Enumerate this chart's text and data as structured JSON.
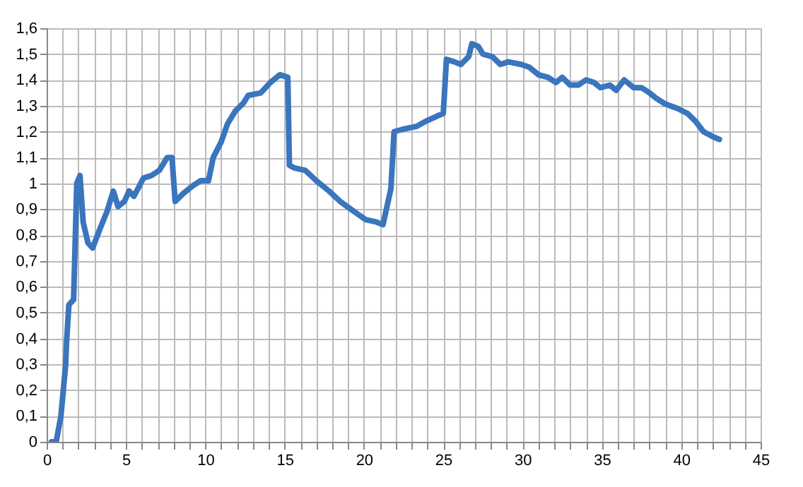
{
  "chart_data": {
    "type": "line",
    "color": "#3a75bd",
    "grid": true,
    "marker": "none",
    "line_style": "solid",
    "xlim": [
      0,
      45
    ],
    "xticks": [
      0,
      {
        "value": 1,
        "label": null
      },
      {
        "value": 2,
        "label": null
      },
      {
        "value": 3,
        "label": null
      },
      {
        "value": 4,
        "label": null
      },
      5,
      {
        "value": 6,
        "label": null
      },
      {
        "value": 7,
        "label": null
      },
      {
        "value": 8,
        "label": null
      },
      {
        "value": 9,
        "label": null
      },
      10,
      {
        "value": 11,
        "label": null
      },
      {
        "value": 12,
        "label": null
      },
      {
        "value": 13,
        "label": null
      },
      {
        "value": 14,
        "label": null
      },
      15,
      {
        "value": 16,
        "label": null
      },
      {
        "value": 17,
        "label": null
      },
      {
        "value": 18,
        "label": null
      },
      {
        "value": 19,
        "label": null
      },
      20,
      {
        "value": 21,
        "label": null
      },
      {
        "value": 22,
        "label": null
      },
      {
        "value": 23,
        "label": null
      },
      {
        "value": 24,
        "label": null
      },
      25,
      {
        "value": 26,
        "label": null
      },
      {
        "value": 27,
        "label": null
      },
      {
        "value": 28,
        "label": null
      },
      {
        "value": 29,
        "label": null
      },
      30,
      {
        "value": 31,
        "label": null
      },
      {
        "value": 32,
        "label": null
      },
      {
        "value": 33,
        "label": null
      },
      {
        "value": 34,
        "label": null
      },
      35,
      {
        "value": 36,
        "label": null
      },
      {
        "value": 37,
        "label": null
      },
      {
        "value": 38,
        "label": null
      },
      {
        "value": 39,
        "label": null
      },
      40,
      {
        "value": 41,
        "label": null
      },
      {
        "value": 42,
        "label": null
      },
      {
        "value": 43,
        "label": null
      },
      {
        "value": 44,
        "label": null
      },
      45
    ],
    "ylim": [
      0,
      1.6
    ],
    "yticks": [
      0,
      {
        "value": 0.1,
        "label": "0,1"
      },
      {
        "value": 0.2,
        "label": "0,2"
      },
      {
        "value": 0.3,
        "label": "0,3"
      },
      {
        "value": 0.4,
        "label": "0,4"
      },
      {
        "value": 0.5,
        "label": "0,5"
      },
      {
        "value": 0.6,
        "label": "0,6"
      },
      {
        "value": 0.7,
        "label": "0,7"
      },
      {
        "value": 0.8,
        "label": "0,8"
      },
      {
        "value": 0.9,
        "label": "0,9"
      },
      1,
      {
        "value": 1.1,
        "label": "1,1"
      },
      {
        "value": 1.2,
        "label": "1,2"
      },
      {
        "value": 1.3,
        "label": "1,3"
      },
      {
        "value": 1.4,
        "label": "1,4"
      },
      {
        "value": 1.5,
        "label": "1,5"
      },
      {
        "value": 1.6,
        "label": "1,6"
      }
    ],
    "x": [
      0.3,
      0.6,
      0.9,
      1.2,
      1.25,
      1.4,
      1.7,
      1.9,
      2.1,
      2.3,
      2.6,
      2.9,
      3.4,
      3.8,
      4.2,
      4.5,
      4.9,
      5.2,
      5.5,
      6.1,
      6.6,
      7.1,
      7.6,
      7.9,
      8.1,
      8.6,
      9.2,
      9.7,
      10.2,
      10.5,
      11.0,
      11.4,
      11.9,
      12.4,
      12.7,
      13.5,
      14.1,
      14.7,
      15.2,
      15.3,
      15.6,
      16.3,
      17.0,
      17.8,
      18.5,
      19.4,
      20.1,
      20.8,
      21.2,
      21.7,
      21.9,
      22.5,
      23.3,
      23.9,
      24.6,
      25.0,
      25.2,
      25.7,
      26.1,
      26.6,
      26.8,
      27.2,
      27.5,
      28.1,
      28.6,
      29.1,
      29.9,
      30.4,
      31.0,
      31.6,
      32.1,
      32.5,
      33.0,
      33.5,
      34.0,
      34.5,
      34.9,
      35.5,
      35.9,
      36.4,
      37.0,
      37.5,
      38.0,
      38.4,
      38.9,
      39.3,
      39.75,
      40.4,
      40.9,
      41.4,
      42.0,
      42.4
    ],
    "values": [
      0,
      0,
      0.1,
      0.3,
      0.38,
      0.53,
      0.55,
      1.0,
      1.03,
      0.85,
      0.77,
      0.75,
      0.83,
      0.89,
      0.97,
      0.91,
      0.93,
      0.97,
      0.95,
      1.02,
      1.03,
      1.05,
      1.1,
      1.1,
      0.93,
      0.96,
      0.99,
      1.01,
      1.01,
      1.1,
      1.16,
      1.23,
      1.28,
      1.31,
      1.34,
      1.35,
      1.39,
      1.42,
      1.41,
      1.07,
      1.06,
      1.05,
      1.01,
      0.97,
      0.93,
      0.89,
      0.86,
      0.85,
      0.84,
      0.98,
      1.2,
      1.21,
      1.22,
      1.24,
      1.26,
      1.27,
      1.48,
      1.47,
      1.46,
      1.49,
      1.54,
      1.53,
      1.5,
      1.49,
      1.46,
      1.47,
      1.46,
      1.45,
      1.42,
      1.41,
      1.39,
      1.41,
      1.38,
      1.38,
      1.4,
      1.39,
      1.37,
      1.38,
      1.36,
      1.4,
      1.37,
      1.37,
      1.35,
      1.33,
      1.31,
      1.3,
      1.29,
      1.27,
      1.24,
      1.2,
      1.18,
      1.17
    ]
  }
}
